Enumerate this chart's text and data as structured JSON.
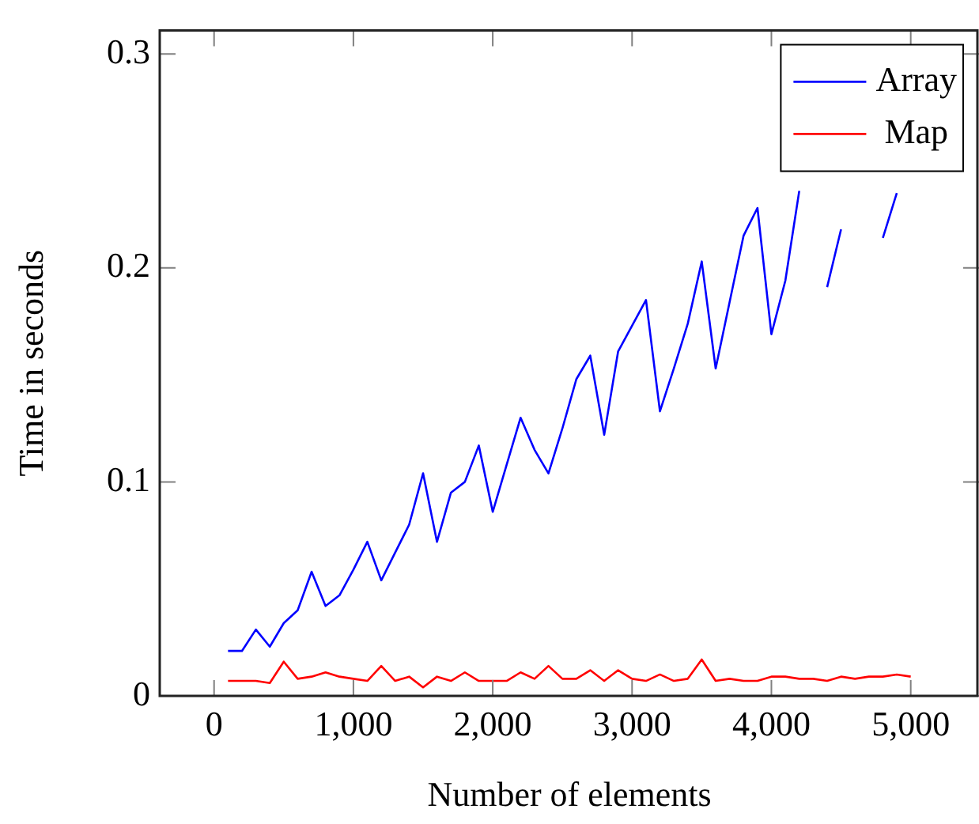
{
  "chart_data": {
    "type": "line",
    "xlabel": "Number of elements",
    "ylabel": "Time in seconds",
    "x": [
      100,
      200,
      300,
      400,
      500,
      600,
      700,
      800,
      900,
      1000,
      1100,
      1200,
      1300,
      1400,
      1500,
      1600,
      1700,
      1800,
      1900,
      2000,
      2100,
      2200,
      2300,
      2400,
      2500,
      2600,
      2700,
      2800,
      2900,
      3000,
      3100,
      3200,
      3300,
      3400,
      3500,
      3600,
      3700,
      3800,
      3900,
      4000,
      4100,
      4200,
      4300,
      4400,
      4500,
      4600,
      4700,
      4800,
      4900,
      5000
    ],
    "series": [
      {
        "name": "Array",
        "color": "#0000ff",
        "values": [
          0.021,
          0.021,
          0.031,
          0.023,
          0.034,
          0.04,
          0.058,
          0.042,
          0.047,
          0.059,
          0.072,
          0.054,
          0.067,
          0.08,
          0.104,
          0.072,
          0.095,
          0.1,
          0.117,
          0.086,
          0.108,
          0.13,
          0.115,
          0.104,
          0.125,
          0.148,
          0.159,
          0.122,
          0.161,
          0.173,
          0.185,
          0.133,
          0.153,
          0.174,
          0.203,
          0.153,
          0.184,
          0.215,
          0.228,
          0.169,
          0.194,
          0.236,
          null,
          0.191,
          0.218,
          null,
          null,
          0.214,
          0.235,
          null
        ]
      },
      {
        "name": "Map",
        "color": "#ff0000",
        "values": [
          0.007,
          0.007,
          0.007,
          0.006,
          0.016,
          0.008,
          0.009,
          0.011,
          0.009,
          0.008,
          0.007,
          0.014,
          0.007,
          0.009,
          0.004,
          0.009,
          0.007,
          0.011,
          0.007,
          0.007,
          0.007,
          0.011,
          0.008,
          0.014,
          0.008,
          0.008,
          0.012,
          0.007,
          0.012,
          0.008,
          0.007,
          0.01,
          0.007,
          0.008,
          0.017,
          0.007,
          0.008,
          0.007,
          0.007,
          0.009,
          0.009,
          0.008,
          0.008,
          0.007,
          0.009,
          0.008,
          0.009,
          0.009,
          0.01,
          0.009
        ]
      }
    ],
    "xlim": [
      -390,
      5490
    ],
    "ylim": [
      0,
      0.311
    ],
    "xticks": [
      0,
      {
        "value": 1000,
        "label": "1,000"
      },
      {
        "value": 2000,
        "label": "2,000"
      },
      {
        "value": 3000,
        "label": "3,000"
      },
      {
        "value": 4000,
        "label": "4,000"
      },
      {
        "value": 5000,
        "label": "5,000"
      }
    ],
    "yticks": [
      0,
      0.1,
      0.2,
      0.3
    ],
    "grid": false,
    "legend": "top right",
    "marker": "none",
    "line_style": "solid"
  }
}
